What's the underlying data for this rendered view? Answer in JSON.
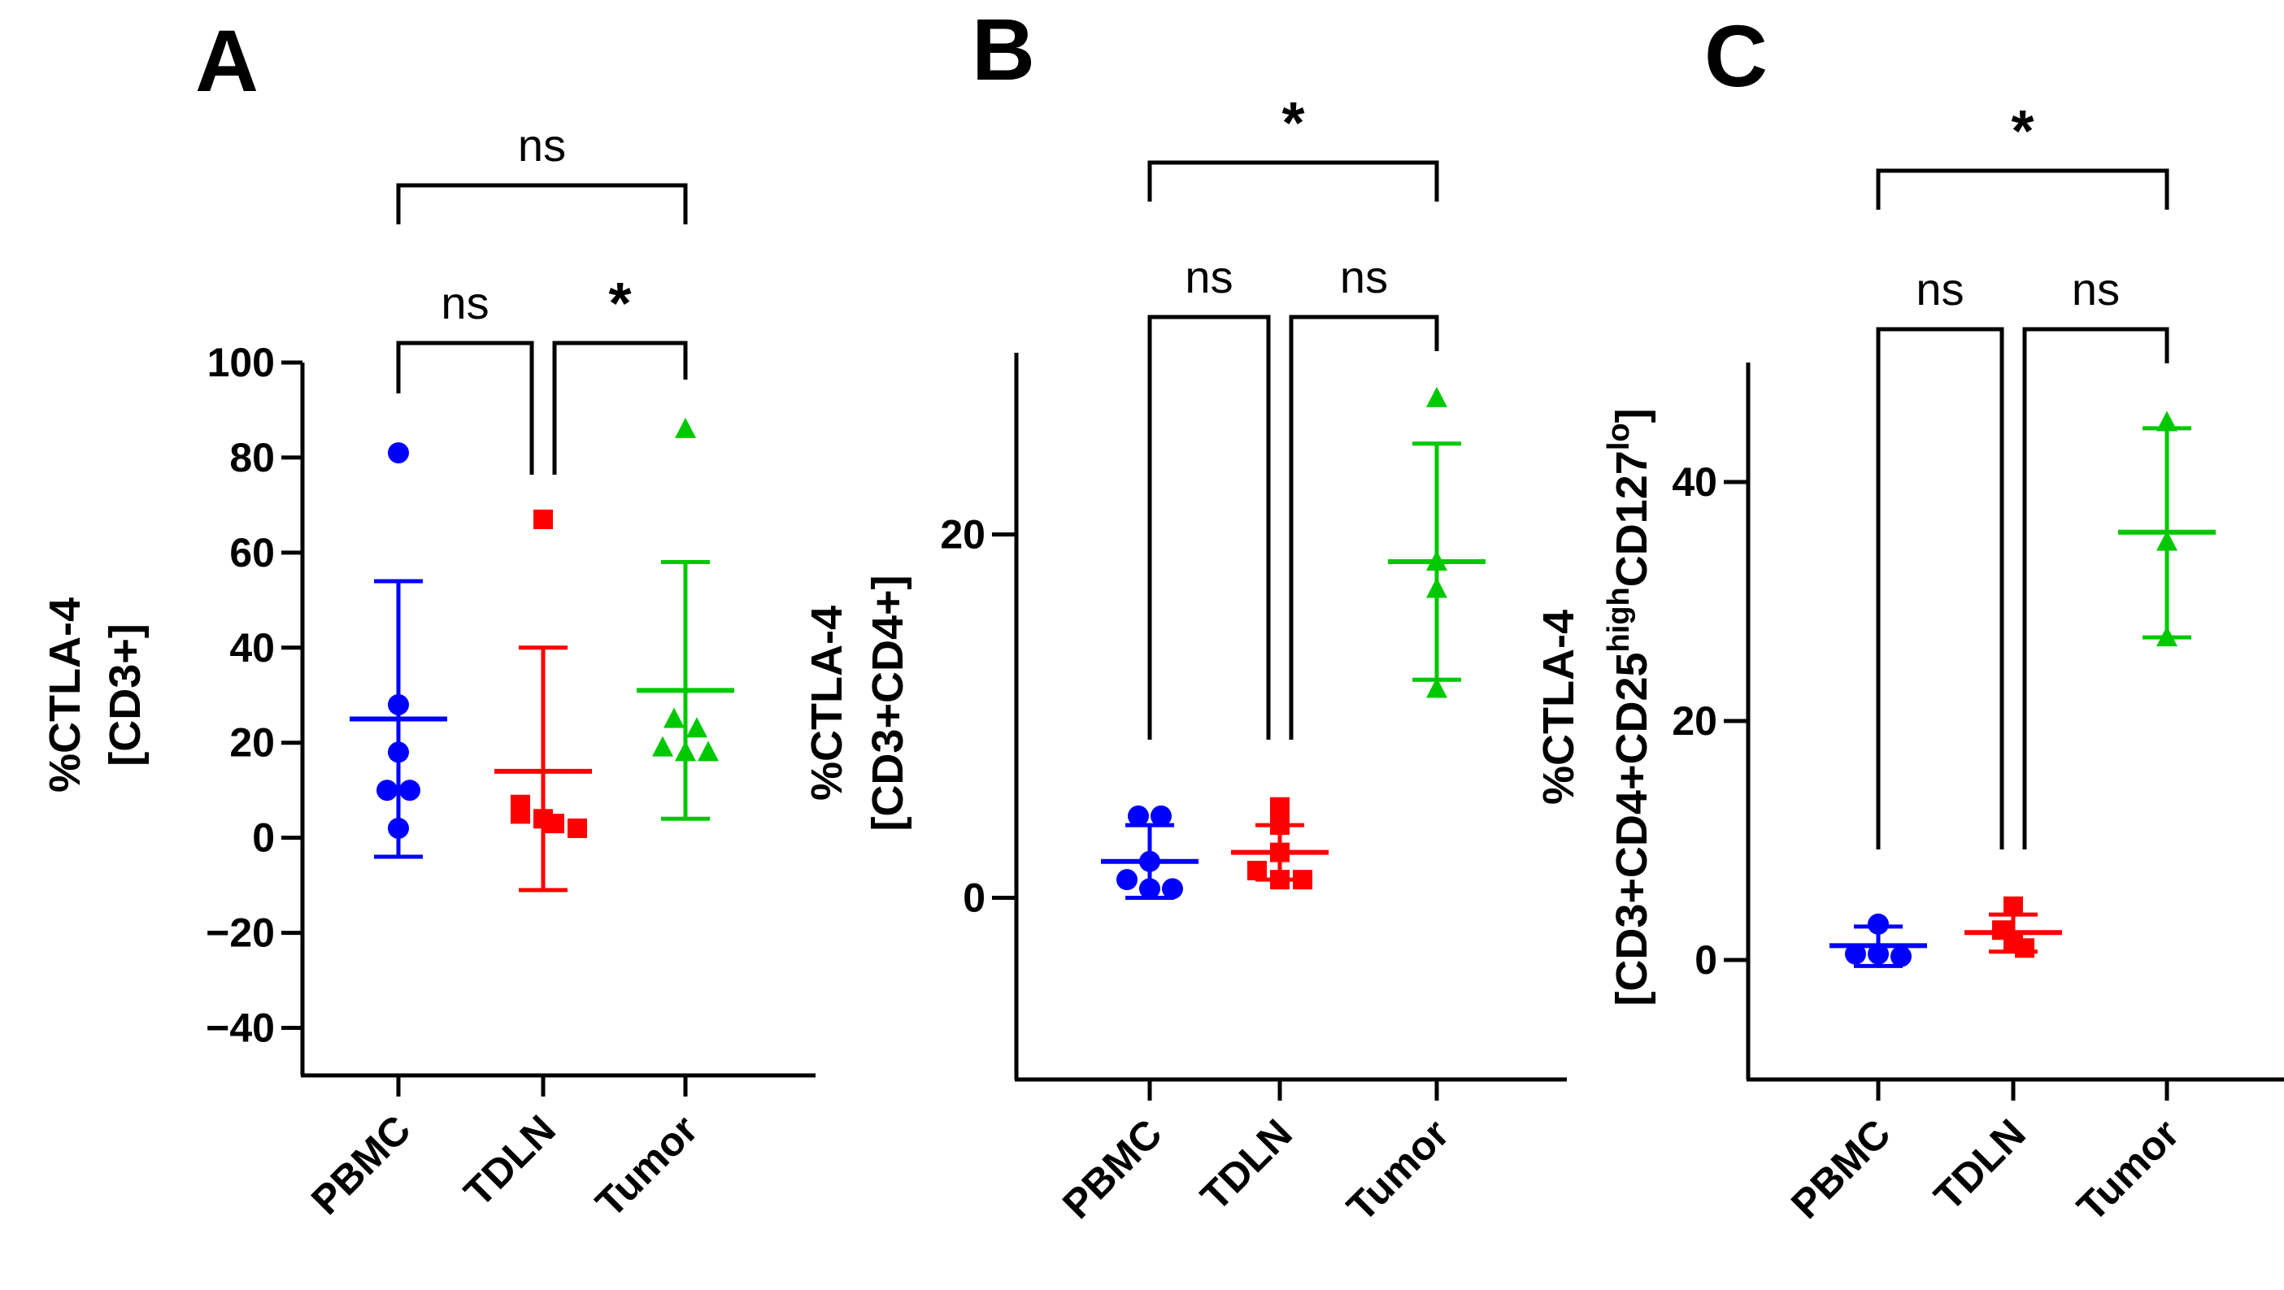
{
  "chart_data": [
    {
      "panel": "A",
      "type": "scatter",
      "categories": [
        "PBMC",
        "TDLN",
        "Tumor"
      ],
      "ylabel_lines": [
        "%CTLA-4",
        "[CD3+]"
      ],
      "yticks": [
        100,
        80,
        60,
        40,
        20,
        0,
        -20,
        -40
      ],
      "ylim": [
        -50,
        100
      ],
      "series": [
        {
          "name": "PBMC",
          "color": "#0000ff",
          "marker": "circle",
          "points": [
            81,
            28,
            18,
            10,
            10,
            2
          ],
          "mean": 25,
          "sd_low": -4,
          "sd_high": 54
        },
        {
          "name": "TDLN",
          "color": "#ff0000",
          "marker": "square",
          "points": [
            67,
            7,
            5,
            4,
            3,
            2
          ],
          "mean": 14,
          "sd_low": -11,
          "sd_high": 40
        },
        {
          "name": "Tumor",
          "color": "#00c800",
          "marker": "triangle",
          "points": [
            86,
            25,
            23,
            19,
            18,
            18
          ],
          "mean": 31,
          "sd_low": 4,
          "sd_high": 58
        }
      ],
      "comparisons": [
        {
          "from": "PBMC",
          "to": "TDLN",
          "label": "ns",
          "level": 1
        },
        {
          "from": "TDLN",
          "to": "Tumor",
          "label": "*",
          "level": 1
        },
        {
          "from": "PBMC",
          "to": "Tumor",
          "label": "ns",
          "level": 2
        }
      ]
    },
    {
      "panel": "B",
      "type": "scatter",
      "categories": [
        "PBMC",
        "TDLN",
        "Tumor"
      ],
      "ylabel_lines": [
        "%CTLA-4",
        "[CD3+CD4+]"
      ],
      "yticks": [
        20,
        0
      ],
      "ylim": [
        -10,
        30
      ],
      "series": [
        {
          "name": "PBMC",
          "color": "#0000ff",
          "marker": "circle",
          "points": [
            4.5,
            4.5,
            2.0,
            1.0,
            0.5,
            0.5
          ],
          "mean": 2.0,
          "sd_low": 0.0,
          "sd_high": 4.0
        },
        {
          "name": "TDLN",
          "color": "#ff0000",
          "marker": "square",
          "points": [
            5.0,
            4.0,
            2.5,
            1.5,
            1.0,
            1.0
          ],
          "mean": 2.5,
          "sd_low": 1.0,
          "sd_high": 4.0
        },
        {
          "name": "Tumor",
          "color": "#00c800",
          "marker": "triangle",
          "points": [
            27.5,
            18.5,
            17.0,
            11.5
          ],
          "mean": 18.5,
          "sd_low": 12.0,
          "sd_high": 25.0
        }
      ],
      "comparisons": [
        {
          "from": "PBMC",
          "to": "TDLN",
          "label": "ns",
          "level": 1
        },
        {
          "from": "TDLN",
          "to": "Tumor",
          "label": "ns",
          "level": 1
        },
        {
          "from": "PBMC",
          "to": "Tumor",
          "label": "*",
          "level": 2
        }
      ]
    },
    {
      "panel": "C",
      "type": "scatter",
      "categories": [
        "PBMC",
        "TDLN",
        "Tumor"
      ],
      "ylabel_lines": [
        "%CTLA-4"
      ],
      "ylabel_rich": [
        {
          "text": "[CD3+CD4+CD25",
          "sup": false
        },
        {
          "text": "high",
          "sup": true
        },
        {
          "text": "CD127",
          "sup": false
        },
        {
          "text": "lo",
          "sup": true
        },
        {
          "text": "]",
          "sup": false
        }
      ],
      "yticks": [
        40,
        20,
        0
      ],
      "ylim": [
        -10,
        50
      ],
      "series": [
        {
          "name": "PBMC",
          "color": "#0000ff",
          "marker": "circle",
          "points": [
            3.0,
            0.5,
            0.5,
            0.3
          ],
          "mean": 1.2,
          "sd_low": -0.5,
          "sd_high": 2.8
        },
        {
          "name": "TDLN",
          "color": "#ff0000",
          "marker": "square",
          "points": [
            4.5,
            2.5,
            1.5,
            1.0
          ],
          "mean": 2.3,
          "sd_low": 0.7,
          "sd_high": 3.8
        },
        {
          "name": "Tumor",
          "color": "#00c800",
          "marker": "triangle",
          "points": [
            45.0,
            35.0,
            27.0
          ],
          "mean": 35.8,
          "sd_low": 27.0,
          "sd_high": 44.5
        }
      ],
      "comparisons": [
        {
          "from": "PBMC",
          "to": "TDLN",
          "label": "ns",
          "level": 1
        },
        {
          "from": "TDLN",
          "to": "Tumor",
          "label": "ns",
          "level": 1
        },
        {
          "from": "PBMC",
          "to": "Tumor",
          "label": "*",
          "level": 2
        }
      ]
    }
  ]
}
